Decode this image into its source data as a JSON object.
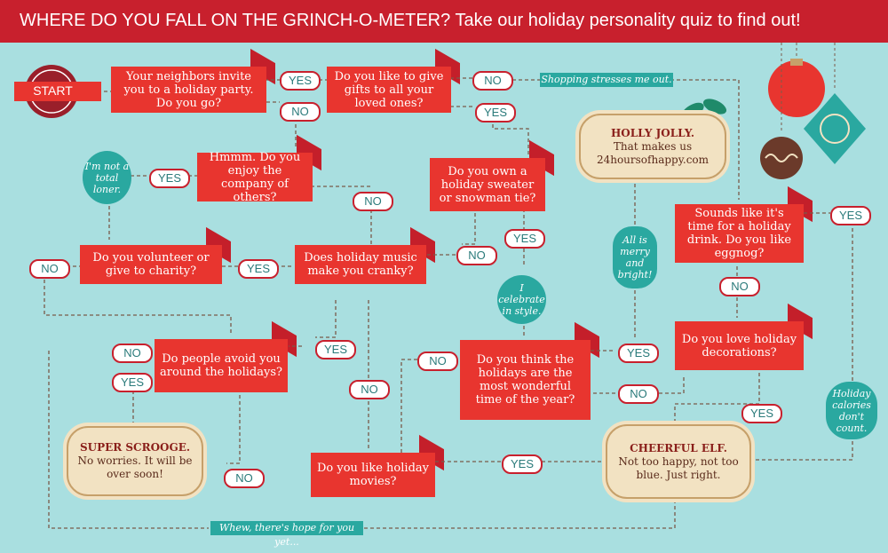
{
  "header": {
    "title_bold": "WHERE DO YOU FALL ON THE GRINCH-O-METER?",
    "title_rest": " Take our holiday personality quiz to find out!"
  },
  "start": "START",
  "questions": {
    "q1": "Your neighbors invite you to a holiday party. Do you go?",
    "q2": "Do you like to give gifts to all your loved ones?",
    "q3": "Hmmm. Do you enjoy the company of others?",
    "q4": "Do you own a holiday sweater or snowman tie?",
    "q5": "Do you volunteer or give to charity?",
    "q6": "Does holiday music make you cranky?",
    "q7": "Sounds like it's time for a holiday drink. Do you like eggnog?",
    "q8": "Do people avoid you around the holidays?",
    "q9": "Do you love holiday decorations?",
    "q10": "Do you think the holidays are the most wonderful time of the year?",
    "q11": "Do you like holiday movies?"
  },
  "answers": {
    "yes": "YES",
    "no": "NO"
  },
  "notes": {
    "shopping": "Shopping stresses me out.",
    "loner": "I'm not a total loner.",
    "celebrate": "I celebrate in style.",
    "merry": "All is merry and bright!",
    "calories": "Holiday calories don't count.",
    "hope": "Whew, there's hope for you yet..."
  },
  "results": {
    "holly_title": "HOLLY JOLLY.",
    "holly_text": "That makes us",
    "holly_site": "24hoursofhappy.com",
    "scrooge_title": "SUPER SCROOGE.",
    "scrooge_text": "No worries. It will be over soon!",
    "elf_title": "CHEERFUL ELF.",
    "elf_text": "Not too happy, not too blue. Just right."
  },
  "colors": {
    "background": "#a9dfe0",
    "red": "#e8352f",
    "teal": "#2aa8a0",
    "cream": "#f2e2c2"
  }
}
